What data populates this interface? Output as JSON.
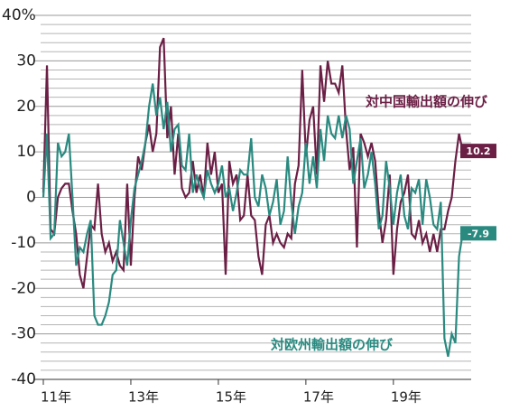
{
  "chart_data": {
    "type": "line",
    "categories": [
      "11年",
      null,
      null,
      null,
      null,
      null,
      null,
      null,
      null,
      null,
      null,
      null,
      null,
      null,
      null,
      null,
      null,
      null,
      null,
      null,
      null,
      null,
      null,
      null,
      "13年",
      null,
      null,
      null,
      null,
      null,
      null,
      null,
      null,
      null,
      null,
      null,
      null,
      null,
      null,
      null,
      null,
      null,
      null,
      null,
      null,
      null,
      null,
      null,
      "15年",
      null,
      null,
      null,
      null,
      null,
      null,
      null,
      null,
      null,
      null,
      null,
      null,
      null,
      null,
      null,
      null,
      null,
      null,
      null,
      null,
      null,
      null,
      null,
      "17年",
      null,
      null,
      null,
      null,
      null,
      null,
      null,
      null,
      null,
      null,
      null,
      null,
      null,
      null,
      null,
      null,
      null,
      null,
      null,
      null,
      null,
      null,
      null,
      "19年",
      null,
      null,
      null,
      null,
      null,
      null,
      null,
      null,
      null,
      null,
      null,
      null,
      null,
      null,
      null,
      null,
      null,
      null,
      null
    ],
    "series": [
      {
        "name": "対中国輸出額の伸び",
        "color": "#6b1f45",
        "values": [
          1,
          29,
          -7,
          -8,
          0,
          2,
          3,
          3,
          -3,
          -8,
          -17,
          -20,
          -13,
          -6,
          -7,
          3,
          -8,
          -12,
          -10,
          -14,
          -12,
          -15,
          -16,
          3,
          -15,
          0,
          9,
          6,
          12,
          16,
          10,
          14,
          33,
          35,
          13,
          20,
          5,
          14,
          2,
          0,
          1,
          8,
          1,
          5,
          0,
          12,
          5,
          10,
          1,
          3,
          -17,
          8,
          3,
          5,
          -5,
          -4,
          5,
          -4,
          -5,
          -13,
          -17,
          -6,
          -4,
          -10,
          -8,
          -10,
          -11,
          -8,
          -9,
          3,
          7,
          28,
          9,
          17,
          20,
          5,
          29,
          21,
          30,
          25,
          25,
          23,
          29,
          15,
          6,
          11,
          -11,
          14,
          12,
          9,
          12,
          8,
          -3,
          -10,
          -5,
          5,
          -17,
          -7,
          -1,
          1,
          5,
          -8,
          -9,
          -5,
          -10,
          -8,
          -12,
          -8,
          -12,
          -7,
          -7,
          -3,
          0,
          8,
          14,
          10.2
        ]
      },
      {
        "name": "対欧州輸出額の伸び",
        "color": "#2a8a80",
        "values": [
          0,
          14,
          -9,
          -8,
          12,
          9,
          10,
          14,
          0,
          -15,
          -11,
          -12,
          -8,
          -5,
          -26,
          -28,
          -28,
          -26,
          -23,
          -17,
          -16,
          -5,
          -10,
          -15,
          -5,
          2,
          5,
          8,
          12,
          20,
          25,
          18,
          22,
          15,
          21,
          10,
          15,
          16,
          7,
          6,
          14,
          1,
          5,
          2,
          0,
          6,
          3,
          1,
          3,
          7,
          0,
          2,
          -3,
          1,
          6,
          5,
          5,
          13,
          0,
          -2,
          5,
          2,
          -4,
          -1,
          4,
          -6,
          -3,
          9,
          -1,
          -8,
          -2,
          1,
          12,
          3,
          9,
          2,
          15,
          8,
          18,
          14,
          13,
          18,
          13,
          18,
          15,
          3,
          8,
          13,
          2,
          5,
          10,
          3,
          -7,
          -4,
          8,
          2,
          -6,
          1,
          5,
          -4,
          -7,
          2,
          1,
          4,
          -6,
          4,
          0,
          -6,
          -7,
          -1,
          -31,
          -35,
          -30,
          -32,
          -13,
          -7.9
        ]
      }
    ],
    "ylim": [
      -40,
      40
    ],
    "yticks": [
      -40,
      -30,
      -20,
      -10,
      0,
      10,
      20,
      30,
      {
        "value": 40,
        "label": "40%"
      }
    ],
    "minor_yticks": [
      -38,
      -36,
      -34,
      -32,
      -28,
      -26,
      -24,
      -22,
      -18,
      -16,
      -14,
      -12,
      -8,
      -6,
      -4,
      -2,
      2,
      4,
      6,
      8,
      12,
      14,
      16,
      18,
      22,
      24,
      26,
      28,
      32,
      34,
      36,
      38
    ],
    "grid": true
  }
}
